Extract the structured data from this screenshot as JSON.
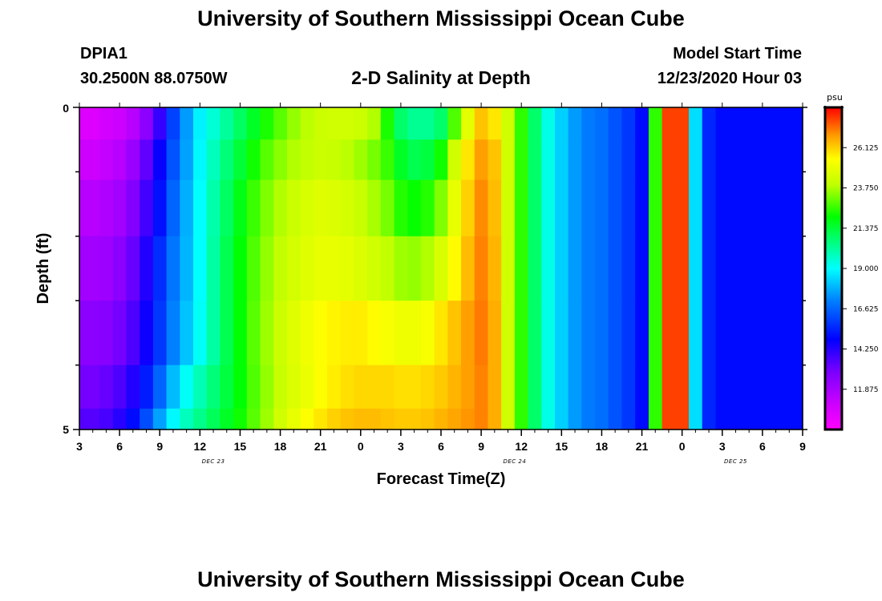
{
  "page": {
    "title_top": "University of Southern Mississippi Ocean Cube",
    "title_bottom": "University of Southern Mississippi Ocean Cube",
    "station_id": "DPIA1",
    "station_coords": "30.2500N 88.0750W",
    "plot_name": "2-D Salinity at Depth",
    "model_start_label": "Model Start Time",
    "model_start_value": "12/23/2020 Hour 03"
  },
  "chart_data": {
    "type": "heatmap",
    "title": "2-D Salinity at Depth",
    "xlabel": "Forecast Time(Z)",
    "ylabel": "Depth (ft)",
    "units": "psu",
    "x_ticks": [
      "3",
      "6",
      "9",
      "12",
      "15",
      "18",
      "21",
      "0",
      "3",
      "6",
      "9",
      "12",
      "15",
      "18",
      "21",
      "0",
      "3",
      "6",
      "9"
    ],
    "date_labels": [
      {
        "text": "DEC 23",
        "at_hour": 13
      },
      {
        "text": "DEC 24",
        "at_hour": 35.5
      },
      {
        "text": "DEC 25",
        "at_hour": 52
      }
    ],
    "x_range_hours": [
      3,
      57
    ],
    "y_range_ft": [
      0,
      5
    ],
    "y_tick_labels": [
      "0",
      "5"
    ],
    "colorbar": {
      "min": 9.5,
      "max": 28.5,
      "labels": [
        "26.125",
        "23.750",
        "21.375",
        "19.000",
        "16.625",
        "14.250",
        "11.875"
      ]
    },
    "depth_layers_ft": [
      0.25,
      0.75,
      1.5,
      2.5,
      3.5,
      4.5,
      4.85
    ],
    "time_hours": [
      3,
      4,
      5,
      6,
      7,
      8,
      9,
      10,
      11,
      12,
      13,
      14,
      15,
      16,
      17,
      18,
      19,
      20,
      21,
      22,
      23,
      24,
      25,
      26,
      27,
      28,
      29,
      30,
      31,
      32,
      33,
      34,
      35,
      36,
      37,
      38,
      39,
      40,
      41,
      42,
      43,
      44,
      45,
      46,
      47,
      48,
      49,
      50,
      51,
      52,
      53,
      54,
      55,
      56,
      57
    ],
    "salinity_psu": [
      [
        10.5,
        10.5,
        10.8,
        11.0,
        11.5,
        12.5,
        14.0,
        16.0,
        17.5,
        18.8,
        19.5,
        20.2,
        20.9,
        21.6,
        22.3,
        22.9,
        23.5,
        23.9,
        24.2,
        24.3,
        24.3,
        24.2,
        23.8,
        22.3,
        20.8,
        20.3,
        20.3,
        20.8,
        22.8,
        24.8,
        26.3,
        25.8,
        24.3,
        22.5,
        20.8,
        19.3,
        18.3,
        17.5,
        17.0,
        16.8,
        16.3,
        15.8,
        15.0,
        22.5,
        27.8,
        27.8,
        18.5,
        15.5,
        15.0,
        15.0,
        15.0,
        15.0,
        15.0,
        15.0,
        15.0
      ],
      [
        11.0,
        11.0,
        11.2,
        11.5,
        12.2,
        13.3,
        14.7,
        16.3,
        17.6,
        18.9,
        19.8,
        20.6,
        21.4,
        22.2,
        22.9,
        23.4,
        23.8,
        24.0,
        24.2,
        24.1,
        23.9,
        23.6,
        23.2,
        22.6,
        21.6,
        21.1,
        21.3,
        22.2,
        24.3,
        25.8,
        26.8,
        26.3,
        24.3,
        22.5,
        20.8,
        19.3,
        18.3,
        17.5,
        17.0,
        16.8,
        16.3,
        15.8,
        15.0,
        22.5,
        27.8,
        27.8,
        18.5,
        15.5,
        15.0,
        15.0,
        15.0,
        15.0,
        15.0,
        15.0,
        15.0
      ],
      [
        11.5,
        11.5,
        11.7,
        12.0,
        12.7,
        13.8,
        15.1,
        16.6,
        17.8,
        19.0,
        20.0,
        20.9,
        21.8,
        22.6,
        23.3,
        23.8,
        24.2,
        24.5,
        24.7,
        24.6,
        24.4,
        24.1,
        23.7,
        23.2,
        22.4,
        22.1,
        22.4,
        23.3,
        24.9,
        26.1,
        27.0,
        26.4,
        24.3,
        22.5,
        20.8,
        19.3,
        18.3,
        17.5,
        17.0,
        16.8,
        16.3,
        15.8,
        15.0,
        22.5,
        27.8,
        27.8,
        18.5,
        15.5,
        15.0,
        15.0,
        15.0,
        15.0,
        15.0,
        15.0,
        15.0
      ],
      [
        12.0,
        12.0,
        12.1,
        12.5,
        13.2,
        14.3,
        15.6,
        16.9,
        17.9,
        19.0,
        20.1,
        21.1,
        22.0,
        22.8,
        23.5,
        24.0,
        24.4,
        24.7,
        24.9,
        24.9,
        24.8,
        24.6,
        24.3,
        24.0,
        23.6,
        23.5,
        23.8,
        24.5,
        25.5,
        26.4,
        27.1,
        26.5,
        24.3,
        22.5,
        20.8,
        19.3,
        18.3,
        17.5,
        17.0,
        16.8,
        16.3,
        15.8,
        15.0,
        22.5,
        27.8,
        27.8,
        18.5,
        15.5,
        15.0,
        15.0,
        15.0,
        15.0,
        15.0,
        15.0,
        15.0
      ],
      [
        12.5,
        12.5,
        12.6,
        13.0,
        13.6,
        14.6,
        15.8,
        17.1,
        18.1,
        19.1,
        20.1,
        21.1,
        22.0,
        22.9,
        23.6,
        24.2,
        24.7,
        25.1,
        25.4,
        25.6,
        25.7,
        25.7,
        25.5,
        25.3,
        25.1,
        25.1,
        25.3,
        25.8,
        26.3,
        26.8,
        27.2,
        26.6,
        24.3,
        22.5,
        20.8,
        19.3,
        18.3,
        17.5,
        17.0,
        16.8,
        16.3,
        15.8,
        15.0,
        22.5,
        27.8,
        27.8,
        18.5,
        15.5,
        15.0,
        15.0,
        15.0,
        15.0,
        15.0,
        15.0,
        15.0
      ],
      [
        13.0,
        13.0,
        13.2,
        13.6,
        14.3,
        15.3,
        16.6,
        18.0,
        19.1,
        19.9,
        20.6,
        21.3,
        22.0,
        22.8,
        23.5,
        24.1,
        24.6,
        25.0,
        25.4,
        25.7,
        25.9,
        26.0,
        26.0,
        26.0,
        25.9,
        25.9,
        26.0,
        26.2,
        26.5,
        26.8,
        27.1,
        26.6,
        24.3,
        22.5,
        20.8,
        19.3,
        18.3,
        17.5,
        17.0,
        16.8,
        16.3,
        15.8,
        15.0,
        22.5,
        27.8,
        27.8,
        18.5,
        15.5,
        15.0,
        15.0,
        15.0,
        15.0,
        15.0,
        15.0,
        15.0
      ],
      [
        13.5,
        13.5,
        13.7,
        14.2,
        15.0,
        16.2,
        17.6,
        18.9,
        19.8,
        20.4,
        21.0,
        21.6,
        22.2,
        22.9,
        23.6,
        24.3,
        24.9,
        25.4,
        25.8,
        26.1,
        26.3,
        26.4,
        26.4,
        26.3,
        26.2,
        26.2,
        26.3,
        26.5,
        26.7,
        26.9,
        27.1,
        26.6,
        24.3,
        22.5,
        20.8,
        19.3,
        18.3,
        17.5,
        17.0,
        16.8,
        16.3,
        15.8,
        15.0,
        22.5,
        27.8,
        27.8,
        18.5,
        15.5,
        15.0,
        15.0,
        15.0,
        15.0,
        15.0,
        15.0,
        15.0
      ]
    ]
  }
}
